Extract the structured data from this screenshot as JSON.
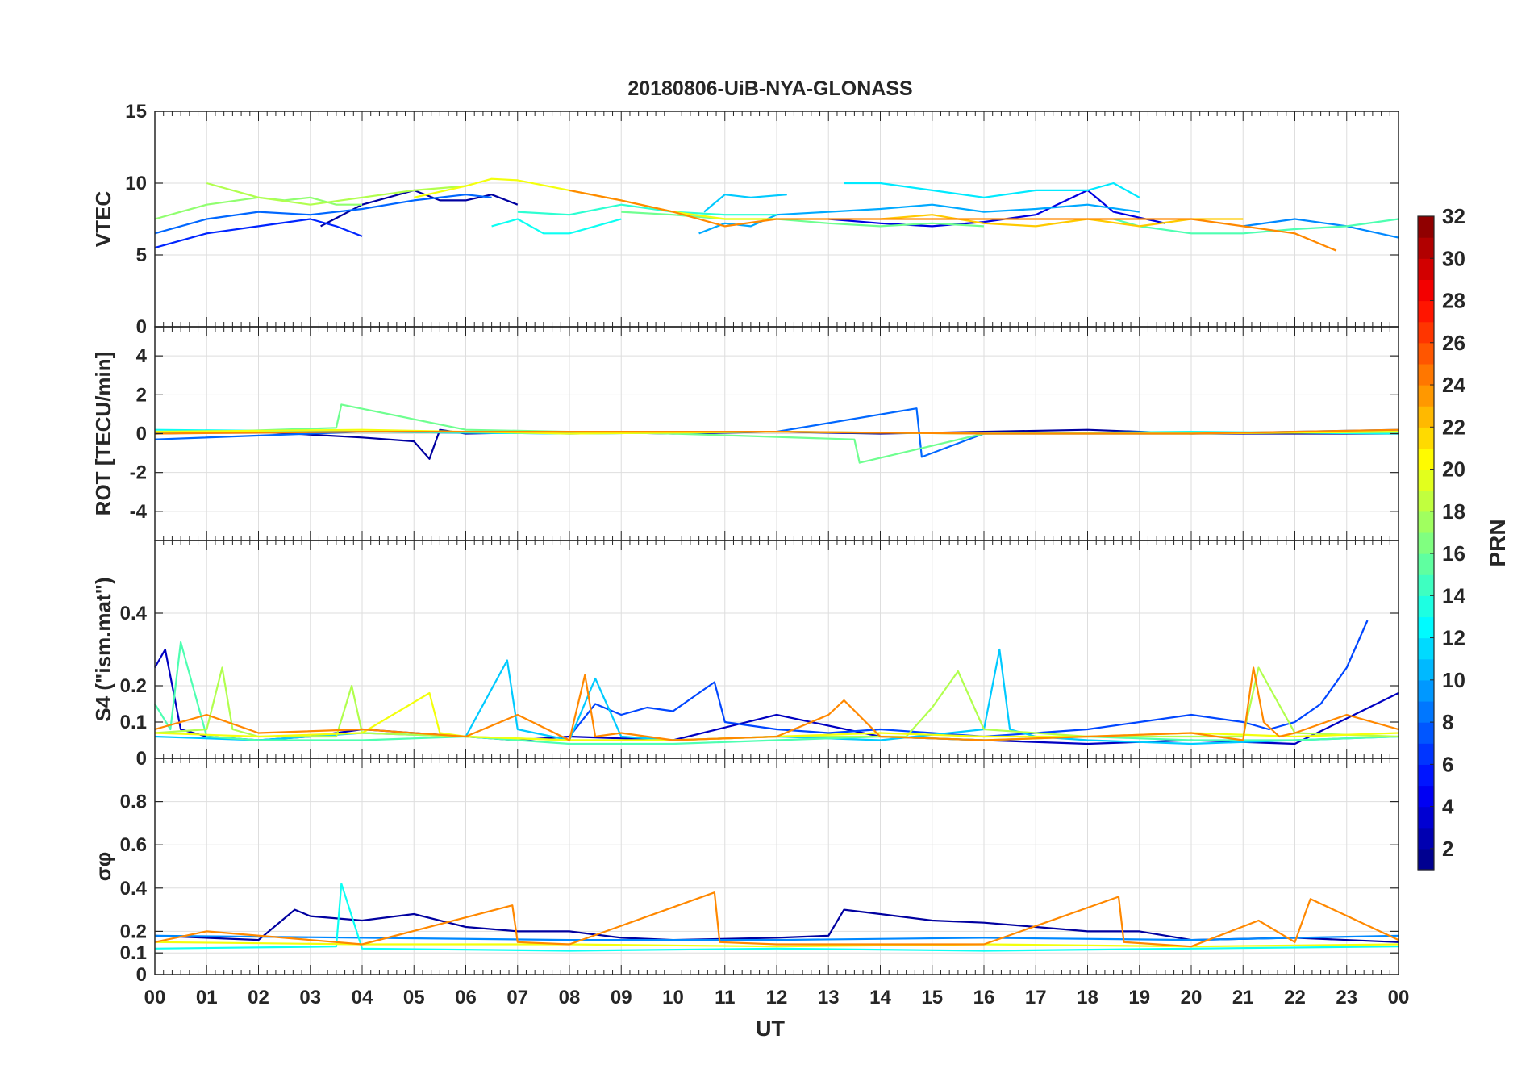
{
  "title": "20180806-UiB-NYA-GLONASS",
  "chart_data": [
    {
      "type": "line",
      "panel": "vtec",
      "ylabel": "VTEC",
      "ylim": [
        0,
        15
      ],
      "yticks": [
        0,
        5,
        10,
        15
      ],
      "ytick_labels": [
        "0",
        "5",
        "10",
        "15"
      ],
      "grid": true,
      "series": [
        {
          "name": "PRN 2",
          "prn": 2,
          "x": [
            3.2,
            4.0,
            5.0,
            5.5,
            6.0,
            6.5,
            7.0
          ],
          "values": [
            7.0,
            8.5,
            9.5,
            8.8,
            8.8,
            9.2,
            8.5
          ]
        },
        {
          "name": "PRN 4",
          "prn": 4,
          "x": [
            13.0,
            14.0,
            15.0,
            16.0,
            17.0,
            18.0,
            18.5,
            19.5
          ],
          "values": [
            7.5,
            7.2,
            7.0,
            7.3,
            7.8,
            9.5,
            8.0,
            7.2
          ]
        },
        {
          "name": "PRN 6",
          "prn": 6,
          "x": [
            0,
            0.5,
            1.0,
            2.0,
            3.0,
            3.5,
            4.0
          ],
          "values": [
            5.5,
            6.0,
            6.5,
            7.0,
            7.5,
            7.0,
            6.3
          ]
        },
        {
          "name": "PRN 8",
          "prn": 8,
          "x": [
            0,
            1.0,
            2.0,
            3.0,
            4.0,
            5.0,
            6.0,
            6.5
          ],
          "values": [
            6.5,
            7.5,
            8.0,
            7.8,
            8.2,
            8.8,
            9.2,
            9.0
          ]
        },
        {
          "name": "PRN 9",
          "prn": 9,
          "x": [
            21.0,
            22.0,
            23.0,
            24.0
          ],
          "values": [
            7.0,
            7.5,
            7.0,
            6.2
          ]
        },
        {
          "name": "PRN 10",
          "prn": 10,
          "x": [
            10.5,
            11.0,
            11.5,
            12.0,
            13.0,
            14.0,
            15.0,
            16.0,
            17.0,
            18.0,
            19.0
          ],
          "values": [
            6.5,
            7.2,
            7.0,
            7.8,
            8.0,
            8.2,
            8.5,
            8.0,
            8.2,
            8.5,
            8.0
          ]
        },
        {
          "name": "PRN 11",
          "prn": 11,
          "x": [
            10.6,
            11.0,
            11.5,
            12.2
          ],
          "values": [
            8.0,
            9.2,
            9.0,
            9.2
          ]
        },
        {
          "name": "PRN 12",
          "prn": 12,
          "x": [
            13.3,
            14.0,
            15.0,
            16.0,
            17.0,
            18.0,
            18.5,
            19.0
          ],
          "values": [
            10.0,
            10.0,
            9.5,
            9.0,
            9.5,
            9.5,
            10.0,
            9.0
          ]
        },
        {
          "name": "PRN 13",
          "prn": 13,
          "x": [
            6.5,
            7.0,
            7.5,
            8.0,
            8.5,
            9.0
          ],
          "values": [
            7.0,
            7.5,
            6.5,
            6.5,
            7.0,
            7.5
          ]
        },
        {
          "name": "PRN 14",
          "prn": 14,
          "x": [
            7.0,
            8.0,
            9.0,
            10.0,
            11.0,
            12.0
          ],
          "values": [
            8.0,
            7.8,
            8.5,
            8.0,
            7.8,
            7.8
          ]
        },
        {
          "name": "PRN 15",
          "prn": 15,
          "x": [
            18.5,
            19.0,
            20.0,
            21.0,
            22.0,
            23.0,
            24.0
          ],
          "values": [
            7.5,
            7.0,
            6.5,
            6.5,
            6.8,
            7.0,
            7.5
          ]
        },
        {
          "name": "PRN 16",
          "prn": 16,
          "x": [
            9.0,
            10.0,
            11.0,
            12.0,
            13.0,
            14.0,
            15.0,
            16.0
          ],
          "values": [
            8.0,
            7.8,
            7.5,
            7.5,
            7.2,
            7.0,
            7.2,
            7.0
          ]
        },
        {
          "name": "PRN 17",
          "prn": 17,
          "x": [
            0,
            0.5,
            1.0,
            2.0,
            2.5,
            3.0,
            3.5,
            4.0
          ],
          "values": [
            7.5,
            8.0,
            8.5,
            9.0,
            8.8,
            9.0,
            8.5,
            8.5
          ]
        },
        {
          "name": "PRN 18",
          "prn": 18,
          "x": [
            1.0,
            1.5,
            2.0,
            3.0,
            4.0,
            5.0,
            6.0
          ],
          "values": [
            10.0,
            9.5,
            9.0,
            8.5,
            9.0,
            9.5,
            9.8
          ]
        },
        {
          "name": "PRN 20",
          "prn": 20,
          "x": [
            5.0,
            6.0,
            6.5,
            7.0,
            8.0,
            9.0,
            10.0,
            11.0,
            12.0
          ],
          "values": [
            9.0,
            9.8,
            10.3,
            10.2,
            9.5,
            8.8,
            8.0,
            7.5,
            7.5
          ]
        },
        {
          "name": "PRN 22",
          "prn": 22,
          "x": [
            14.0,
            15.0,
            16.0,
            17.0,
            18.0,
            19.0,
            20.0,
            21.0
          ],
          "values": [
            7.5,
            7.8,
            7.2,
            7.0,
            7.5,
            7.0,
            7.5,
            7.5
          ]
        },
        {
          "name": "PRN 24",
          "prn": 24,
          "x": [
            8.0,
            9.0,
            10.0,
            11.0,
            12.0,
            20.0,
            21.0,
            22.0,
            22.8
          ],
          "values": [
            9.5,
            8.8,
            8.0,
            7.0,
            7.5,
            7.5,
            7.0,
            6.5,
            5.3
          ]
        }
      ]
    },
    {
      "type": "line",
      "panel": "rot",
      "ylabel": "ROT [TECU/min]",
      "ylim": [
        -5.5,
        5.5
      ],
      "yticks": [
        -4,
        -2,
        0,
        2,
        4
      ],
      "ytick_labels": [
        "-4",
        "-2",
        "0",
        "2",
        "4"
      ],
      "grid": true,
      "series": [
        {
          "name": "PRN 2",
          "prn": 2,
          "x": [
            0,
            2,
            4,
            5,
            5.3,
            5.5,
            6,
            8,
            10,
            12,
            14,
            16,
            18,
            20,
            22,
            24
          ],
          "values": [
            0,
            0.1,
            -0.2,
            -0.4,
            -1.3,
            0.2,
            0,
            0.1,
            0,
            0.1,
            0,
            0.1,
            0.2,
            0,
            0,
            0
          ]
        },
        {
          "name": "PRN 8",
          "prn": 8,
          "x": [
            0,
            4,
            8,
            12,
            14.7,
            14.8,
            16,
            20,
            24
          ],
          "values": [
            -0.3,
            0.1,
            0,
            0.1,
            1.3,
            -1.2,
            0,
            0,
            0.2
          ]
        },
        {
          "name": "PRN 13",
          "prn": 13,
          "x": [
            0,
            4,
            8,
            12,
            16,
            20,
            24
          ],
          "values": [
            0.2,
            0.1,
            0,
            0.1,
            0,
            0.1,
            0
          ]
        },
        {
          "name": "PRN 16",
          "prn": 16,
          "x": [
            0,
            3.5,
            3.6,
            6,
            10,
            13.5,
            13.6,
            16,
            24
          ],
          "values": [
            0,
            0.3,
            1.5,
            0.2,
            0,
            -0.3,
            -1.5,
            0,
            0.1
          ]
        },
        {
          "name": "PRN 20",
          "prn": 20,
          "x": [
            0,
            4,
            8,
            12,
            16,
            20,
            24
          ],
          "values": [
            0.1,
            0.2,
            0,
            0.1,
            0,
            0,
            0.1
          ]
        },
        {
          "name": "PRN 24",
          "prn": 24,
          "x": [
            0,
            4,
            8,
            12,
            16,
            20,
            24
          ],
          "values": [
            0,
            0.1,
            0.1,
            0.1,
            0,
            0,
            0.2
          ]
        }
      ]
    },
    {
      "type": "line",
      "panel": "s4",
      "ylabel": "S4 (\"ism.mat\")",
      "ylim": [
        0,
        0.6
      ],
      "yticks": [
        0,
        0.1,
        0.2,
        0.4
      ],
      "ytick_labels": [
        "0",
        "0.1",
        "0.2",
        "0.4"
      ],
      "grid": true,
      "series": [
        {
          "name": "PRN 3",
          "prn": 3,
          "x": [
            0,
            0.2,
            0.5,
            1,
            2,
            3,
            4,
            5,
            6,
            7,
            8,
            10,
            12,
            14,
            16,
            18,
            20,
            22,
            24
          ],
          "values": [
            0.25,
            0.3,
            0.08,
            0.06,
            0.05,
            0.06,
            0.08,
            0.07,
            0.06,
            0.05,
            0.06,
            0.05,
            0.12,
            0.06,
            0.05,
            0.04,
            0.05,
            0.04,
            0.18
          ]
        },
        {
          "name": "PRN 7",
          "prn": 7,
          "x": [
            8,
            8.5,
            9,
            9.5,
            10,
            10.5,
            10.8,
            11,
            12,
            13,
            14,
            16,
            18,
            20,
            21,
            21.5,
            22,
            22.5,
            23,
            23.4
          ],
          "values": [
            0.06,
            0.15,
            0.12,
            0.14,
            0.13,
            0.18,
            0.21,
            0.1,
            0.08,
            0.07,
            0.08,
            0.06,
            0.08,
            0.12,
            0.1,
            0.08,
            0.1,
            0.15,
            0.25,
            0.38
          ]
        },
        {
          "name": "PRN 11",
          "prn": 11,
          "x": [
            0,
            2,
            4,
            6,
            6.8,
            7,
            8,
            8.5,
            9,
            10,
            12,
            14,
            16,
            16.3,
            16.5,
            17,
            18,
            20,
            22,
            24
          ],
          "values": [
            0.06,
            0.05,
            0.07,
            0.06,
            0.27,
            0.08,
            0.05,
            0.22,
            0.06,
            0.05,
            0.06,
            0.05,
            0.08,
            0.3,
            0.08,
            0.06,
            0.05,
            0.04,
            0.05,
            0.06
          ]
        },
        {
          "name": "PRN 15",
          "prn": 15,
          "x": [
            0,
            0.3,
            0.5,
            1,
            2,
            4,
            6,
            8,
            10,
            12,
            14,
            16,
            18,
            20,
            22,
            24
          ],
          "values": [
            0.15,
            0.08,
            0.32,
            0.06,
            0.05,
            0.05,
            0.06,
            0.04,
            0.04,
            0.05,
            0.06,
            0.05,
            0.06,
            0.05,
            0.05,
            0.06
          ]
        },
        {
          "name": "PRN 18",
          "prn": 18,
          "x": [
            0,
            1,
            1.3,
            1.5,
            2,
            3.5,
            3.8,
            4,
            6,
            8,
            10,
            12,
            14.5,
            15,
            15.5,
            16,
            18,
            21,
            21.3,
            22,
            24
          ],
          "values": [
            0.07,
            0.08,
            0.25,
            0.08,
            0.06,
            0.06,
            0.2,
            0.07,
            0.06,
            0.05,
            0.05,
            0.06,
            0.06,
            0.14,
            0.24,
            0.08,
            0.06,
            0.06,
            0.25,
            0.07,
            0.06
          ]
        },
        {
          "name": "PRN 20",
          "prn": 20,
          "x": [
            0,
            2,
            4,
            5.3,
            5.5,
            6,
            8,
            10,
            12,
            14,
            16,
            18,
            20,
            22,
            24
          ],
          "values": [
            0.07,
            0.06,
            0.07,
            0.18,
            0.07,
            0.06,
            0.05,
            0.05,
            0.06,
            0.07,
            0.06,
            0.06,
            0.07,
            0.06,
            0.07
          ]
        },
        {
          "name": "PRN 24",
          "prn": 24,
          "x": [
            0,
            1,
            2,
            4,
            6,
            7,
            8,
            8.3,
            8.5,
            9,
            10,
            12,
            13,
            13.3,
            14,
            16,
            18,
            20,
            21,
            21.2,
            21.4,
            21.7,
            22,
            23,
            24
          ],
          "values": [
            0.08,
            0.12,
            0.07,
            0.08,
            0.06,
            0.12,
            0.05,
            0.23,
            0.06,
            0.07,
            0.05,
            0.06,
            0.12,
            0.16,
            0.06,
            0.05,
            0.06,
            0.07,
            0.05,
            0.25,
            0.1,
            0.06,
            0.07,
            0.12,
            0.08
          ]
        }
      ]
    },
    {
      "type": "line",
      "panel": "sigma_phi",
      "ylabel": "σφ",
      "ylim": [
        0,
        1.0
      ],
      "yticks": [
        0,
        0.1,
        0.2,
        0.4,
        0.6,
        0.8
      ],
      "ytick_labels": [
        "0",
        "0.1",
        "0.2",
        "0.4",
        "0.6",
        "0.8"
      ],
      "grid": true,
      "series": [
        {
          "name": "PRN 2",
          "prn": 2,
          "x": [
            0,
            2,
            2.7,
            3,
            4,
            5,
            6,
            7,
            8,
            9,
            10,
            12,
            13,
            13.3,
            14,
            15,
            16,
            17,
            18,
            19,
            20,
            22,
            24
          ],
          "values": [
            0.18,
            0.16,
            0.3,
            0.27,
            0.25,
            0.28,
            0.22,
            0.2,
            0.2,
            0.17,
            0.16,
            0.17,
            0.18,
            0.3,
            0.28,
            0.25,
            0.24,
            0.22,
            0.2,
            0.2,
            0.16,
            0.17,
            0.15
          ]
        },
        {
          "name": "PRN 9",
          "prn": 9,
          "x": [
            0,
            4,
            8,
            12,
            16,
            20,
            24
          ],
          "values": [
            0.18,
            0.17,
            0.16,
            0.16,
            0.17,
            0.16,
            0.18
          ]
        },
        {
          "name": "PRN 13",
          "prn": 13,
          "x": [
            0,
            3.5,
            3.6,
            4,
            8,
            12,
            16,
            20,
            24
          ],
          "values": [
            0.12,
            0.13,
            0.42,
            0.12,
            0.11,
            0.12,
            0.11,
            0.12,
            0.13
          ]
        },
        {
          "name": "PRN 20",
          "prn": 20,
          "x": [
            0,
            4,
            8,
            12,
            16,
            20,
            24
          ],
          "values": [
            0.15,
            0.14,
            0.14,
            0.13,
            0.14,
            0.13,
            0.14
          ]
        },
        {
          "name": "PRN 24",
          "prn": 24,
          "x": [
            0,
            1,
            4,
            6.9,
            7,
            8,
            10.8,
            10.9,
            12,
            16,
            18.6,
            18.7,
            20,
            21.3,
            22,
            22.3,
            24
          ],
          "values": [
            0.15,
            0.2,
            0.14,
            0.32,
            0.15,
            0.14,
            0.38,
            0.15,
            0.14,
            0.14,
            0.36,
            0.15,
            0.13,
            0.25,
            0.15,
            0.35,
            0.16
          ]
        }
      ]
    }
  ],
  "x_axis": {
    "label": "UT",
    "range": [
      0,
      24
    ],
    "tick_labels": [
      "00",
      "01",
      "02",
      "03",
      "04",
      "05",
      "06",
      "07",
      "08",
      "09",
      "10",
      "11",
      "12",
      "13",
      "14",
      "15",
      "16",
      "17",
      "18",
      "19",
      "20",
      "21",
      "22",
      "23",
      "00"
    ]
  },
  "colorbar": {
    "label": "PRN",
    "range": [
      1,
      32
    ],
    "ticks": [
      2,
      4,
      6,
      8,
      10,
      12,
      14,
      16,
      18,
      20,
      22,
      24,
      26,
      28,
      30,
      32
    ],
    "tick_labels": [
      "2",
      "4",
      "6",
      "8",
      "10",
      "12",
      "14",
      "16",
      "18",
      "20",
      "22",
      "24",
      "26",
      "28",
      "30",
      "32"
    ],
    "colormap": "jet"
  }
}
